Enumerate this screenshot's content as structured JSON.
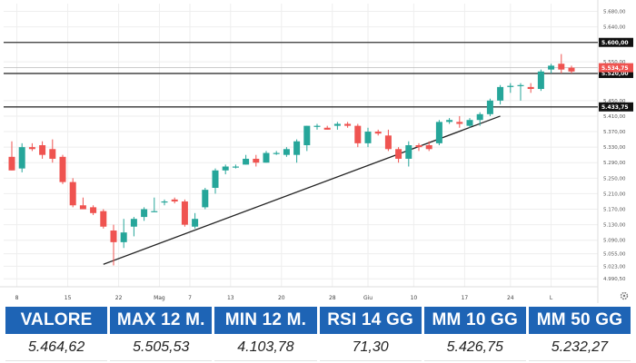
{
  "chart_data": {
    "type": "candlestick",
    "ylim": [
      4970,
      5700
    ],
    "y_ticks": [
      {
        "v": 4990.5,
        "label": "4.990,50"
      },
      {
        "v": 5023,
        "label": "5.023,00"
      },
      {
        "v": 5055,
        "label": "5.055,00"
      },
      {
        "v": 5090,
        "label": "5.090,00"
      },
      {
        "v": 5130,
        "label": "5.130,00"
      },
      {
        "v": 5170,
        "label": "5.170,00"
      },
      {
        "v": 5210,
        "label": "5.210,00"
      },
      {
        "v": 5250,
        "label": "5.250,00"
      },
      {
        "v": 5290,
        "label": "5.290,00"
      },
      {
        "v": 5330,
        "label": "5.330,00"
      },
      {
        "v": 5370,
        "label": "5.370,00"
      },
      {
        "v": 5410,
        "label": "5.410,00"
      },
      {
        "v": 5450,
        "label": "5.450,00"
      },
      {
        "v": 5550,
        "label": "5.550,00"
      },
      {
        "v": 5640,
        "label": "5.640,00"
      },
      {
        "v": 5680,
        "label": "5.680,00"
      }
    ],
    "x_ticks": [
      {
        "i": 0.5,
        "label": "8"
      },
      {
        "i": 5.5,
        "label": "15"
      },
      {
        "i": 10.5,
        "label": "22"
      },
      {
        "i": 14.5,
        "label": "Mag"
      },
      {
        "i": 17.5,
        "label": "7"
      },
      {
        "i": 21.5,
        "label": "13"
      },
      {
        "i": 26.5,
        "label": "20"
      },
      {
        "i": 31.5,
        "label": "28"
      },
      {
        "i": 35,
        "label": "Giu"
      },
      {
        "i": 39.5,
        "label": "10"
      },
      {
        "i": 44.5,
        "label": "17"
      },
      {
        "i": 49,
        "label": "24"
      },
      {
        "i": 53,
        "label": "L"
      }
    ],
    "levels": [
      {
        "v": 5600,
        "label": "5.600,00"
      },
      {
        "v": 5520,
        "label": "5.520,00"
      },
      {
        "v": 5433.75,
        "label": "5.433,75"
      }
    ],
    "last_price": {
      "v": 5534.75,
      "label": "5.534,75"
    },
    "trendline": [
      [
        9,
        5028
      ],
      [
        48,
        5410
      ]
    ],
    "candles": [
      {
        "o": 5305,
        "h": 5345,
        "l": 5270,
        "c": 5270
      },
      {
        "o": 5275,
        "h": 5340,
        "l": 5265,
        "c": 5330
      },
      {
        "o": 5330,
        "h": 5340,
        "l": 5320,
        "c": 5325
      },
      {
        "o": 5335,
        "h": 5345,
        "l": 5300,
        "c": 5310
      },
      {
        "o": 5325,
        "h": 5350,
        "l": 5290,
        "c": 5300
      },
      {
        "o": 5305,
        "h": 5310,
        "l": 5235,
        "c": 5240
      },
      {
        "o": 5240,
        "h": 5250,
        "l": 5175,
        "c": 5180
      },
      {
        "o": 5180,
        "h": 5200,
        "l": 5170,
        "c": 5170
      },
      {
        "o": 5175,
        "h": 5180,
        "l": 5155,
        "c": 5160
      },
      {
        "o": 5165,
        "h": 5170,
        "l": 5120,
        "c": 5125
      },
      {
        "o": 5115,
        "h": 5130,
        "l": 5025,
        "c": 5085
      },
      {
        "o": 5085,
        "h": 5145,
        "l": 5070,
        "c": 5110
      },
      {
        "o": 5125,
        "h": 5150,
        "l": 5100,
        "c": 5145
      },
      {
        "o": 5150,
        "h": 5175,
        "l": 5140,
        "c": 5170
      },
      {
        "o": 5165,
        "h": 5200,
        "l": 5165,
        "c": 5165
      },
      {
        "o": 5190,
        "h": 5195,
        "l": 5180,
        "c": 5190
      },
      {
        "o": 5195,
        "h": 5200,
        "l": 5185,
        "c": 5190
      },
      {
        "o": 5190,
        "h": 5195,
        "l": 5125,
        "c": 5130
      },
      {
        "o": 5125,
        "h": 5160,
        "l": 5120,
        "c": 5145
      },
      {
        "o": 5175,
        "h": 5225,
        "l": 5170,
        "c": 5220
      },
      {
        "o": 5225,
        "h": 5275,
        "l": 5210,
        "c": 5270
      },
      {
        "o": 5270,
        "h": 5285,
        "l": 5260,
        "c": 5280
      },
      {
        "o": 5280,
        "h": 5285,
        "l": 5275,
        "c": 5280
      },
      {
        "o": 5285,
        "h": 5310,
        "l": 5285,
        "c": 5300
      },
      {
        "o": 5300,
        "h": 5310,
        "l": 5280,
        "c": 5290
      },
      {
        "o": 5290,
        "h": 5320,
        "l": 5290,
        "c": 5315
      },
      {
        "o": 5315,
        "h": 5320,
        "l": 5310,
        "c": 5315
      },
      {
        "o": 5310,
        "h": 5330,
        "l": 5305,
        "c": 5325
      },
      {
        "o": 5310,
        "h": 5350,
        "l": 5290,
        "c": 5345
      },
      {
        "o": 5335,
        "h": 5385,
        "l": 5320,
        "c": 5385
      },
      {
        "o": 5385,
        "h": 5390,
        "l": 5375,
        "c": 5385
      },
      {
        "o": 5380,
        "h": 5385,
        "l": 5375,
        "c": 5375
      },
      {
        "o": 5385,
        "h": 5395,
        "l": 5375,
        "c": 5390
      },
      {
        "o": 5390,
        "h": 5395,
        "l": 5380,
        "c": 5385
      },
      {
        "o": 5385,
        "h": 5390,
        "l": 5330,
        "c": 5340
      },
      {
        "o": 5340,
        "h": 5380,
        "l": 5330,
        "c": 5370
      },
      {
        "o": 5370,
        "h": 5375,
        "l": 5360,
        "c": 5365
      },
      {
        "o": 5360,
        "h": 5375,
        "l": 5320,
        "c": 5325
      },
      {
        "o": 5325,
        "h": 5330,
        "l": 5290,
        "c": 5300
      },
      {
        "o": 5300,
        "h": 5345,
        "l": 5280,
        "c": 5335
      },
      {
        "o": 5335,
        "h": 5340,
        "l": 5320,
        "c": 5330
      },
      {
        "o": 5335,
        "h": 5345,
        "l": 5320,
        "c": 5325
      },
      {
        "o": 5340,
        "h": 5400,
        "l": 5335,
        "c": 5395
      },
      {
        "o": 5395,
        "h": 5405,
        "l": 5390,
        "c": 5400
      },
      {
        "o": 5395,
        "h": 5410,
        "l": 5380,
        "c": 5390
      },
      {
        "o": 5385,
        "h": 5405,
        "l": 5380,
        "c": 5400
      },
      {
        "o": 5400,
        "h": 5420,
        "l": 5385,
        "c": 5415
      },
      {
        "o": 5415,
        "h": 5455,
        "l": 5410,
        "c": 5450
      },
      {
        "o": 5450,
        "h": 5490,
        "l": 5440,
        "c": 5485
      },
      {
        "o": 5485,
        "h": 5495,
        "l": 5470,
        "c": 5488
      },
      {
        "o": 5488,
        "h": 5495,
        "l": 5450,
        "c": 5490
      },
      {
        "o": 5485,
        "h": 5495,
        "l": 5470,
        "c": 5480
      },
      {
        "o": 5480,
        "h": 5530,
        "l": 5475,
        "c": 5525
      },
      {
        "o": 5530,
        "h": 5545,
        "l": 5520,
        "c": 5540
      },
      {
        "o": 5545,
        "h": 5570,
        "l": 5520,
        "c": 5530
      },
      {
        "o": 5535,
        "h": 5540,
        "l": 5520,
        "c": 5525
      }
    ],
    "colors": {
      "up": "#26a69a",
      "down": "#ef5350",
      "trend": "#222222",
      "level": "#333333"
    }
  },
  "stats": {
    "headers": [
      "VALORE",
      "MAX 12 M.",
      "MIN 12 M.",
      "RSI 14 GG",
      "MM 10 GG",
      "MM 50 GG"
    ],
    "values": [
      "5.464,62",
      "5.505,53",
      "4.103,78",
      "71,30",
      "5.426,75",
      "5.232,27"
    ]
  },
  "icons": {
    "settings": "gear-icon"
  }
}
